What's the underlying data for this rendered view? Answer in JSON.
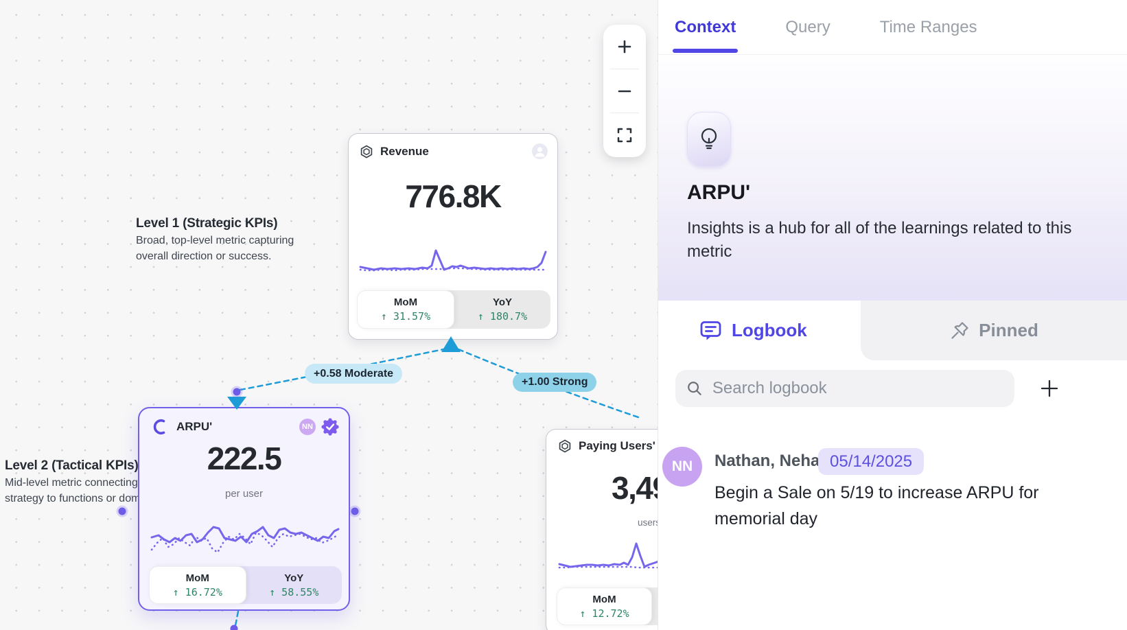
{
  "canvas": {
    "zoom_controls": {
      "zoom_in": "+",
      "zoom_out": "−"
    },
    "annotations": [
      {
        "title": "Level 1 (Strategic KPIs)",
        "lines": [
          "Broad, top-level metric capturing",
          "overall direction or success."
        ]
      },
      {
        "title": "Level 2 (Tactical KPIs)",
        "lines": [
          "Mid-level metric connecting",
          "strategy to functions or domains."
        ]
      }
    ],
    "edges": [
      {
        "label": "+0.58 Moderate"
      },
      {
        "label": "+1.00 Strong"
      }
    ],
    "cards": {
      "revenue": {
        "title": "Revenue",
        "value": "776.8K",
        "mom_label": "MoM",
        "mom_value": "↑ 31.57%",
        "yoy_label": "YoY",
        "yoy_value": "↑ 180.7%"
      },
      "arpu": {
        "title": "ARPU'",
        "value": "222.5",
        "unit": "per user",
        "avatar_initials": "NN",
        "mom_label": "MoM",
        "mom_value": "↑ 16.72%",
        "yoy_label": "YoY",
        "yoy_value": "↑ 58.55%"
      },
      "paying_users": {
        "title": "Paying Users'",
        "value": "3,49",
        "unit": "users",
        "mom_label": "MoM",
        "mom_value": "↑ 12.72%"
      }
    }
  },
  "sparklines": {
    "revenue": {
      "solid": "2,36 12,38 22,40 32,38 42,39 52,38 62,39 72,38 82,39 92,37 100,38 106,34 112,12 118,26 124,40 130,38 136,35 142,36 148,34 154,36 160,38 168,37 176,38 184,39 192,38 200,39 208,38 216,39 224,38 232,39 240,38 248,39 254,38 260,36 266,30 272,14",
      "dotted": "2,40 12,41 22,41 32,40 42,40 52,41 62,40 72,40 82,40 92,39 102,39 112,39 122,39 132,38 142,38 152,38 162,39 172,39 182,40 192,40 202,40 212,40 222,40 232,40 242,40 252,40 262,40 272,40"
    },
    "arpu": {
      "solid": "2,30 12,27 20,33 28,37 36,31 44,35 52,27 60,25 68,37 76,33 84,23 92,15 100,17 108,31 116,33 124,35 132,29 140,37 148,25 156,21 164,15 172,27 180,31 188,19 196,17 204,23 212,25 220,23 228,27 236,31 244,35 252,29 260,31 268,21 274,18",
      "dotted": "2,48 10,38 18,31 26,44 34,40 42,31 50,37 58,42 66,29 74,35 82,31 90,46 98,52 106,38 114,29 122,33 130,25 138,31 146,40 154,23 162,27 170,35 178,44 186,31 194,25 202,29 210,27 218,25 226,29 234,33 242,31 250,38 258,35 266,31 274,26"
    },
    "paying": {
      "solid": "2,36 10,38 18,40 26,39 34,38 42,37 50,37 58,38 66,37 74,38 82,36 90,37 96,34 102,37 108,26 114,6 120,24 126,40 132,37 138,35 144,33 148,31",
      "dotted": "2,41 12,41 22,40 32,40 42,40 52,40 62,40 72,40 82,40 92,40 100,40 108,40 116,41 124,41 132,41 140,41 148,41"
    }
  },
  "panel": {
    "tabs": [
      {
        "label": "Context",
        "active": true
      },
      {
        "label": "Query"
      },
      {
        "label": "Time Ranges"
      }
    ],
    "hero": {
      "title": "ARPU'",
      "description": "Insights is a hub for all of the learnings related to this metric"
    },
    "sections": {
      "logbook": "Logbook",
      "pinned": "Pinned"
    },
    "search": {
      "placeholder": "Search logbook"
    },
    "entries": [
      {
        "initials": "NN",
        "author": "Nathan, Neha",
        "date": "05/14/2025",
        "text": "Begin a Sale on 5/19 to increase ARPU for memorial day"
      }
    ]
  },
  "colors": {
    "accent_purple": "#6C5CE7",
    "sparkline_purple": "#7666EC",
    "edge_blue": "#1E9CD7",
    "pill_moderate_bg": "#C7E8F7",
    "pill_strong_bg": "#8ED2EA",
    "stat_green": "#2E8466",
    "active_tab": "#4F46E5",
    "date_badge_bg": "#E7E2FB",
    "avatar_purple": "#C8A3F2",
    "canvas_bg": "#F7F7F8",
    "hero_lavender": "#E6E2F7"
  }
}
